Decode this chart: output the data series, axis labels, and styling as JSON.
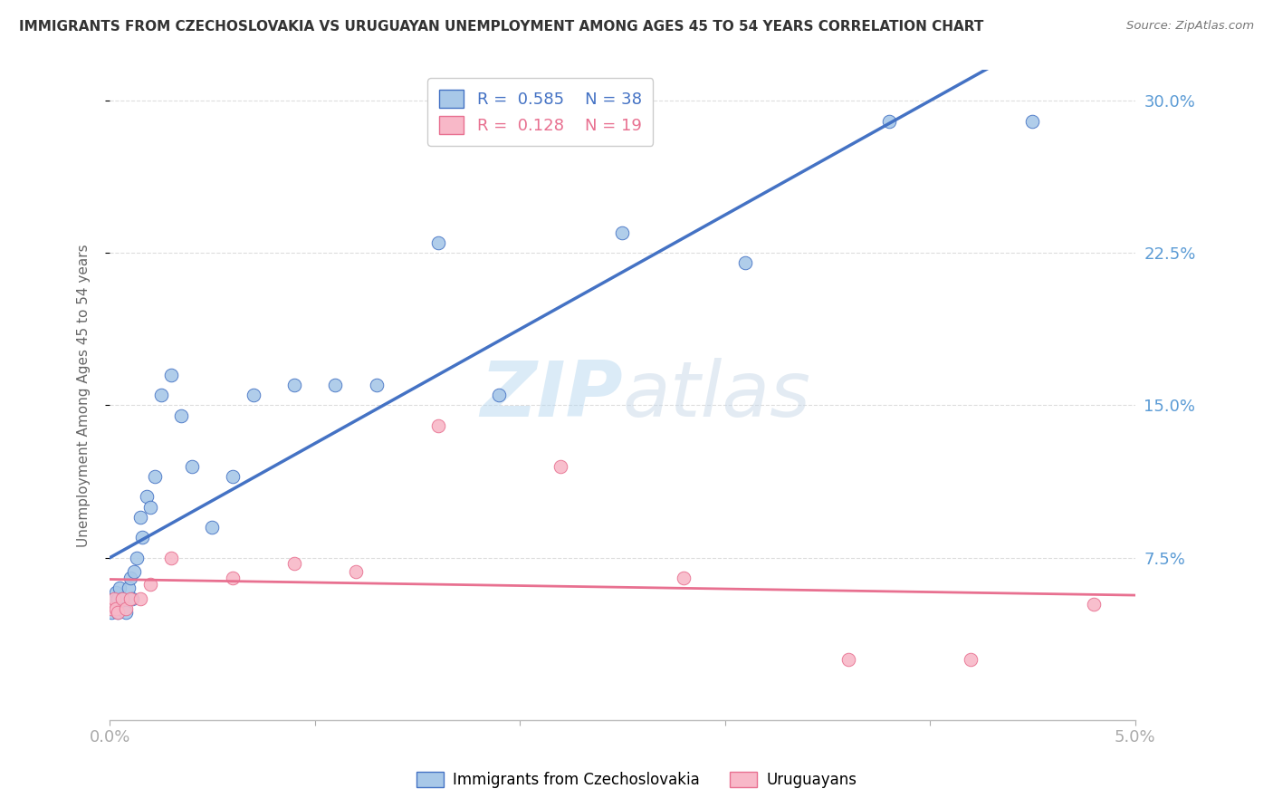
{
  "title": "IMMIGRANTS FROM CZECHOSLOVAKIA VS URUGUAYAN UNEMPLOYMENT AMONG AGES 45 TO 54 YEARS CORRELATION CHART",
  "source": "Source: ZipAtlas.com",
  "ylabel": "Unemployment Among Ages 45 to 54 years",
  "blue_label": "Immigrants from Czechoslovakia",
  "pink_label": "Uruguayans",
  "blue_R": 0.585,
  "blue_N": 38,
  "pink_R": 0.128,
  "pink_N": 19,
  "blue_color": "#A8C8E8",
  "pink_color": "#F8B8C8",
  "blue_line_color": "#4472C4",
  "pink_line_color": "#E87090",
  "tick_color": "#5B9BD5",
  "xlim": [
    0.0,
    0.05
  ],
  "ylim": [
    -0.005,
    0.315
  ],
  "yticks": [
    0.075,
    0.15,
    0.225,
    0.3
  ],
  "ytick_labels": [
    "7.5%",
    "15.0%",
    "22.5%",
    "30.0%"
  ],
  "xticks": [
    0.0,
    0.01,
    0.02,
    0.03,
    0.04,
    0.05
  ],
  "xtick_labels": [
    "0.0%",
    "",
    "",
    "",
    "",
    "5.0%"
  ],
  "blue_x": [
    0.0001,
    0.0002,
    0.0002,
    0.0003,
    0.0003,
    0.0004,
    0.0004,
    0.0005,
    0.0005,
    0.0006,
    0.0007,
    0.0008,
    0.0009,
    0.001,
    0.0011,
    0.0012,
    0.0013,
    0.0015,
    0.0016,
    0.0018,
    0.002,
    0.0022,
    0.0025,
    0.003,
    0.0035,
    0.004,
    0.005,
    0.006,
    0.007,
    0.009,
    0.011,
    0.013,
    0.016,
    0.019,
    0.025,
    0.031,
    0.038,
    0.045
  ],
  "blue_y": [
    0.048,
    0.052,
    0.055,
    0.05,
    0.058,
    0.048,
    0.055,
    0.05,
    0.06,
    0.055,
    0.05,
    0.048,
    0.06,
    0.065,
    0.055,
    0.068,
    0.075,
    0.095,
    0.085,
    0.105,
    0.1,
    0.115,
    0.155,
    0.165,
    0.145,
    0.12,
    0.09,
    0.115,
    0.155,
    0.16,
    0.16,
    0.16,
    0.23,
    0.155,
    0.235,
    0.22,
    0.29,
    0.29
  ],
  "pink_x": [
    0.0001,
    0.0002,
    0.0003,
    0.0004,
    0.0006,
    0.0008,
    0.001,
    0.0015,
    0.002,
    0.003,
    0.006,
    0.009,
    0.012,
    0.016,
    0.022,
    0.028,
    0.036,
    0.042,
    0.048
  ],
  "pink_y": [
    0.05,
    0.055,
    0.05,
    0.048,
    0.055,
    0.05,
    0.055,
    0.055,
    0.062,
    0.075,
    0.065,
    0.072,
    0.068,
    0.14,
    0.12,
    0.065,
    0.025,
    0.025,
    0.052
  ],
  "watermark_part1": "ZIP",
  "watermark_part2": "atlas",
  "background_color": "#FFFFFF",
  "grid_color": "#DDDDDD"
}
